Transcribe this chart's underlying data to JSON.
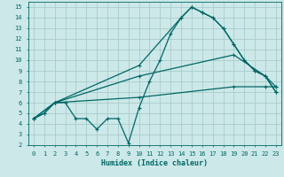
{
  "xlabel": "Humidex (Indice chaleur)",
  "xlim": [
    -0.5,
    23.5
  ],
  "ylim": [
    2,
    15.5
  ],
  "yticks": [
    2,
    3,
    4,
    5,
    6,
    7,
    8,
    9,
    10,
    11,
    12,
    13,
    14,
    15
  ],
  "xticks": [
    0,
    1,
    2,
    3,
    4,
    5,
    6,
    7,
    8,
    9,
    10,
    11,
    12,
    13,
    14,
    15,
    16,
    17,
    18,
    19,
    20,
    21,
    22,
    23
  ],
  "background_color": "#cce8e8",
  "grid_color": "#aacccc",
  "line_color": "#006666",
  "line1_x": [
    0,
    1,
    2,
    3,
    4,
    5,
    6,
    7,
    8,
    9,
    10,
    11,
    12,
    13,
    14,
    15,
    16,
    17,
    18,
    19,
    20,
    21,
    22,
    23
  ],
  "line1_y": [
    4.5,
    5.0,
    6.0,
    6.0,
    4.5,
    4.5,
    3.5,
    4.5,
    4.5,
    2.2,
    5.5,
    8.0,
    10.0,
    12.5,
    14.0,
    15.0,
    14.5,
    14.0,
    13.0,
    11.5,
    10.0,
    9.0,
    8.5,
    7.0
  ],
  "line2_x": [
    0,
    1,
    2,
    10,
    14,
    15,
    16,
    17,
    18,
    19,
    20,
    21,
    22,
    23
  ],
  "line2_y": [
    4.5,
    5.0,
    6.0,
    9.5,
    14.0,
    15.0,
    14.5,
    14.0,
    13.0,
    11.5,
    10.0,
    9.0,
    8.5,
    7.0
  ],
  "line3_x": [
    0,
    2,
    10,
    19,
    22,
    23
  ],
  "line3_y": [
    4.5,
    6.0,
    8.5,
    10.5,
    8.5,
    7.5
  ],
  "line4_x": [
    0,
    2,
    10,
    19,
    22,
    23
  ],
  "line4_y": [
    4.5,
    6.0,
    6.5,
    7.5,
    7.5,
    7.5
  ]
}
